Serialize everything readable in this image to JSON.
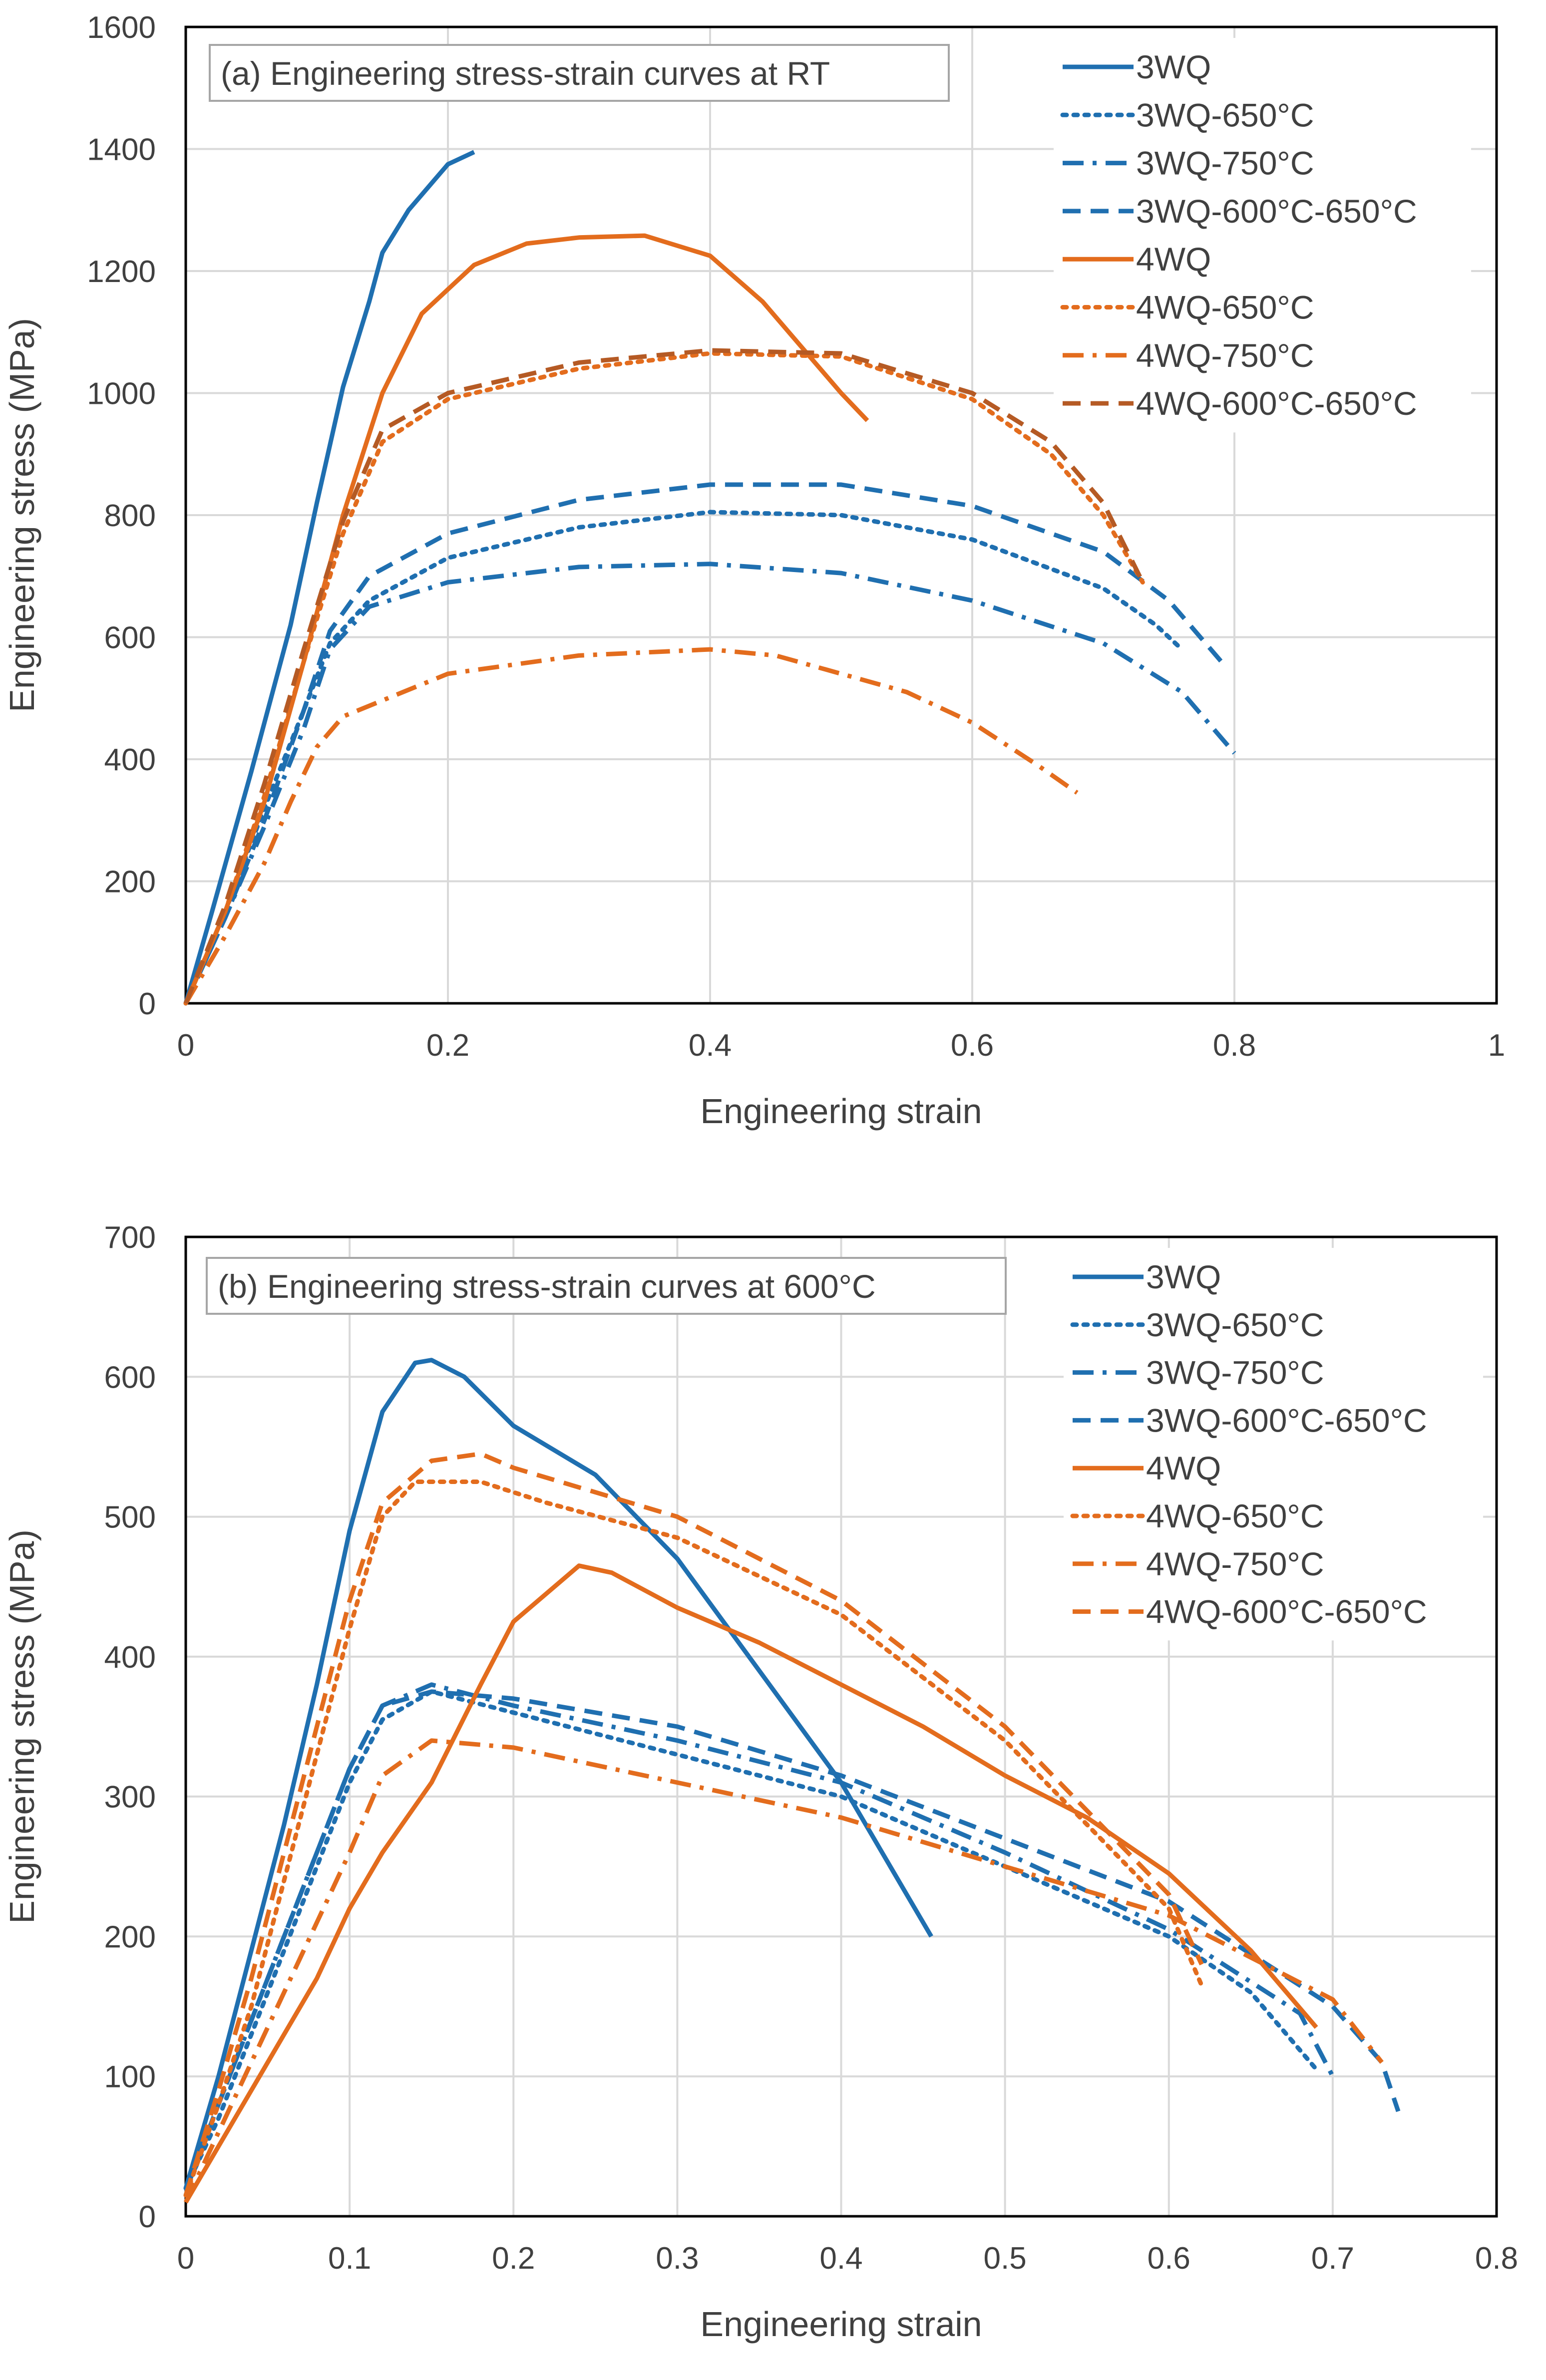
{
  "chart_data": [
    {
      "type": "line",
      "annotation": "(a) Engineering stress-strain curves at RT",
      "xlabel": "Engineering strain",
      "ylabel": "Engineering  stress (MPa)",
      "xlim": [
        0,
        1
      ],
      "ylim": [
        0,
        1600
      ],
      "xticks": [
        0,
        0.2,
        0.4,
        0.6,
        0.8,
        1
      ],
      "yticks": [
        0,
        200,
        400,
        600,
        800,
        1000,
        1200,
        1400,
        1600
      ],
      "xtick_labels": [
        "0",
        "0.2",
        "0.4",
        "0.6",
        "0.8",
        "1"
      ],
      "ytick_labels": [
        "0",
        "200",
        "400",
        "600",
        "800",
        "1000",
        "1200",
        "1400",
        "1600"
      ],
      "grid": true,
      "legend_position": "top-right",
      "colors": {
        "blue": "#1f6fb0",
        "orange": "#e36c1d",
        "darkorange": "#b55a24",
        "grid": "#d9d9d9",
        "axis": "#000000"
      },
      "series": [
        {
          "name": "3WQ",
          "color": "#1f6fb0",
          "dash": "solid",
          "x": [
            0,
            0.02,
            0.05,
            0.08,
            0.1,
            0.12,
            0.14,
            0.15,
            0.17,
            0.19,
            0.2,
            0.22
          ],
          "y": [
            0,
            150,
            380,
            620,
            820,
            1010,
            1150,
            1230,
            1300,
            1350,
            1375,
            1395
          ]
        },
        {
          "name": "3WQ-650°C",
          "color": "#1f6fb0",
          "dash": "dot",
          "x": [
            0,
            0.03,
            0.06,
            0.09,
            0.11,
            0.14,
            0.2,
            0.3,
            0.4,
            0.5,
            0.6,
            0.7,
            0.74,
            0.76
          ],
          "y": [
            0,
            150,
            320,
            480,
            590,
            660,
            730,
            780,
            805,
            800,
            760,
            680,
            620,
            580
          ]
        },
        {
          "name": "3WQ-750°C",
          "color": "#1f6fb0",
          "dash": "dashdot",
          "x": [
            0,
            0.03,
            0.06,
            0.09,
            0.11,
            0.14,
            0.2,
            0.3,
            0.4,
            0.5,
            0.6,
            0.7,
            0.76,
            0.8
          ],
          "y": [
            0,
            140,
            290,
            450,
            580,
            650,
            690,
            715,
            720,
            705,
            660,
            590,
            510,
            410
          ]
        },
        {
          "name": "3WQ-600°C-650°C",
          "color": "#1f6fb0",
          "dash": "dash",
          "x": [
            0,
            0.03,
            0.06,
            0.09,
            0.11,
            0.14,
            0.2,
            0.3,
            0.4,
            0.5,
            0.6,
            0.7,
            0.75,
            0.79
          ],
          "y": [
            0,
            140,
            300,
            480,
            610,
            700,
            770,
            825,
            850,
            850,
            815,
            740,
            660,
            560
          ]
        },
        {
          "name": "4WQ",
          "color": "#e36c1d",
          "dash": "solid",
          "x": [
            0,
            0.03,
            0.06,
            0.09,
            0.12,
            0.15,
            0.18,
            0.22,
            0.26,
            0.3,
            0.35,
            0.4,
            0.44,
            0.48,
            0.5,
            0.52
          ],
          "y": [
            0,
            150,
            330,
            560,
            800,
            1000,
            1130,
            1210,
            1245,
            1255,
            1258,
            1225,
            1150,
            1050,
            1000,
            955
          ]
        },
        {
          "name": "4WQ-650°C",
          "color": "#e36c1d",
          "dash": "dot",
          "x": [
            0,
            0.03,
            0.06,
            0.09,
            0.12,
            0.15,
            0.2,
            0.3,
            0.4,
            0.5,
            0.6,
            0.66,
            0.7,
            0.73
          ],
          "y": [
            0,
            150,
            340,
            560,
            770,
            920,
            990,
            1040,
            1065,
            1060,
            990,
            900,
            800,
            690
          ]
        },
        {
          "name": "4WQ-750°C",
          "color": "#e36c1d",
          "dash": "dashdot",
          "x": [
            0,
            0.03,
            0.06,
            0.08,
            0.1,
            0.12,
            0.2,
            0.3,
            0.4,
            0.45,
            0.55,
            0.6,
            0.65,
            0.68
          ],
          "y": [
            0,
            110,
            230,
            330,
            420,
            470,
            540,
            570,
            580,
            570,
            510,
            460,
            390,
            345
          ]
        },
        {
          "name": "4WQ-600°C-650°C",
          "color": "#b55a24",
          "dash": "dash",
          "x": [
            0,
            0.03,
            0.06,
            0.09,
            0.12,
            0.15,
            0.2,
            0.3,
            0.4,
            0.5,
            0.6,
            0.66,
            0.7,
            0.73
          ],
          "y": [
            0,
            160,
            360,
            580,
            790,
            940,
            1000,
            1050,
            1070,
            1065,
            1000,
            920,
            820,
            690
          ]
        }
      ]
    },
    {
      "type": "line",
      "annotation": "(b) Engineering stress-strain curves at 600°C",
      "xlabel": "Engineering strain",
      "ylabel": "Engineering  stress (MPa)",
      "xlim": [
        0,
        0.8
      ],
      "ylim": [
        0,
        700
      ],
      "xticks": [
        0,
        0.1,
        0.2,
        0.3,
        0.4,
        0.5,
        0.6,
        0.7,
        0.8
      ],
      "yticks": [
        0,
        100,
        200,
        300,
        400,
        500,
        600,
        700
      ],
      "xtick_labels": [
        "0",
        "0.1",
        "0.2",
        "0.3",
        "0.4",
        "0.5",
        "0.6",
        "0.7",
        "0.8"
      ],
      "ytick_labels": [
        "0",
        "100",
        "200",
        "300",
        "400",
        "500",
        "600",
        "700"
      ],
      "grid": true,
      "legend_position": "top-right",
      "colors": {
        "blue": "#1f6fb0",
        "orange": "#e36c1d",
        "grid": "#d9d9d9",
        "axis": "#000000"
      },
      "series": [
        {
          "name": "3WQ",
          "color": "#1f6fb0",
          "dash": "solid",
          "x": [
            0,
            0.02,
            0.04,
            0.06,
            0.08,
            0.1,
            0.12,
            0.14,
            0.15,
            0.17,
            0.2,
            0.25,
            0.3,
            0.35,
            0.4,
            0.43,
            0.455
          ],
          "y": [
            20,
            100,
            190,
            280,
            380,
            490,
            575,
            610,
            612,
            600,
            565,
            530,
            470,
            390,
            310,
            250,
            200
          ]
        },
        {
          "name": "3WQ-650°C",
          "color": "#1f6fb0",
          "dash": "dot",
          "x": [
            0,
            0.02,
            0.04,
            0.06,
            0.08,
            0.1,
            0.12,
            0.15,
            0.2,
            0.3,
            0.4,
            0.5,
            0.6,
            0.65,
            0.69
          ],
          "y": [
            20,
            70,
            130,
            190,
            250,
            310,
            355,
            375,
            360,
            330,
            300,
            250,
            200,
            160,
            105
          ]
        },
        {
          "name": "3WQ-750°C",
          "color": "#1f6fb0",
          "dash": "dashdot",
          "x": [
            0,
            0.02,
            0.04,
            0.06,
            0.08,
            0.1,
            0.12,
            0.15,
            0.2,
            0.3,
            0.4,
            0.5,
            0.6,
            0.68,
            0.7
          ],
          "y": [
            20,
            80,
            140,
            200,
            260,
            320,
            365,
            380,
            365,
            340,
            310,
            260,
            205,
            145,
            100
          ]
        },
        {
          "name": "3WQ-600°C-650°C",
          "color": "#1f6fb0",
          "dash": "dash",
          "x": [
            0,
            0.02,
            0.04,
            0.06,
            0.08,
            0.1,
            0.12,
            0.15,
            0.2,
            0.3,
            0.4,
            0.5,
            0.6,
            0.7,
            0.73,
            0.74
          ],
          "y": [
            20,
            80,
            140,
            200,
            260,
            320,
            365,
            375,
            370,
            350,
            315,
            270,
            225,
            150,
            110,
            75
          ]
        },
        {
          "name": "4WQ",
          "color": "#e36c1d",
          "dash": "solid",
          "x": [
            0,
            0.02,
            0.05,
            0.08,
            0.1,
            0.12,
            0.15,
            0.18,
            0.2,
            0.24,
            0.26,
            0.3,
            0.35,
            0.4,
            0.45,
            0.5,
            0.55,
            0.6,
            0.65,
            0.69
          ],
          "y": [
            10,
            50,
            110,
            170,
            220,
            260,
            310,
            380,
            425,
            465,
            460,
            435,
            410,
            380,
            350,
            315,
            285,
            245,
            190,
            135
          ]
        },
        {
          "name": "4WQ-650°C",
          "color": "#e36c1d",
          "dash": "dot",
          "x": [
            0,
            0.02,
            0.04,
            0.06,
            0.08,
            0.1,
            0.12,
            0.14,
            0.18,
            0.22,
            0.3,
            0.4,
            0.5,
            0.55,
            0.6,
            0.62
          ],
          "y": [
            15,
            80,
            150,
            240,
            330,
            420,
            500,
            525,
            525,
            510,
            485,
            430,
            340,
            280,
            220,
            165
          ]
        },
        {
          "name": "4WQ-750°C",
          "color": "#e36c1d",
          "dash": "dashdot",
          "x": [
            0,
            0.02,
            0.04,
            0.06,
            0.08,
            0.1,
            0.12,
            0.15,
            0.2,
            0.3,
            0.4,
            0.5,
            0.6,
            0.7,
            0.73
          ],
          "y": [
            10,
            60,
            110,
            160,
            210,
            260,
            315,
            340,
            335,
            310,
            285,
            250,
            215,
            155,
            110
          ]
        },
        {
          "name": "4WQ-600°C-650°C",
          "color": "#e36c1d",
          "dash": "dash",
          "x": [
            0,
            0.02,
            0.04,
            0.06,
            0.08,
            0.1,
            0.12,
            0.15,
            0.18,
            0.2,
            0.3,
            0.4,
            0.5,
            0.55,
            0.6,
            0.62
          ],
          "y": [
            15,
            90,
            170,
            260,
            350,
            440,
            510,
            540,
            545,
            535,
            500,
            440,
            350,
            290,
            230,
            180
          ]
        }
      ]
    }
  ]
}
